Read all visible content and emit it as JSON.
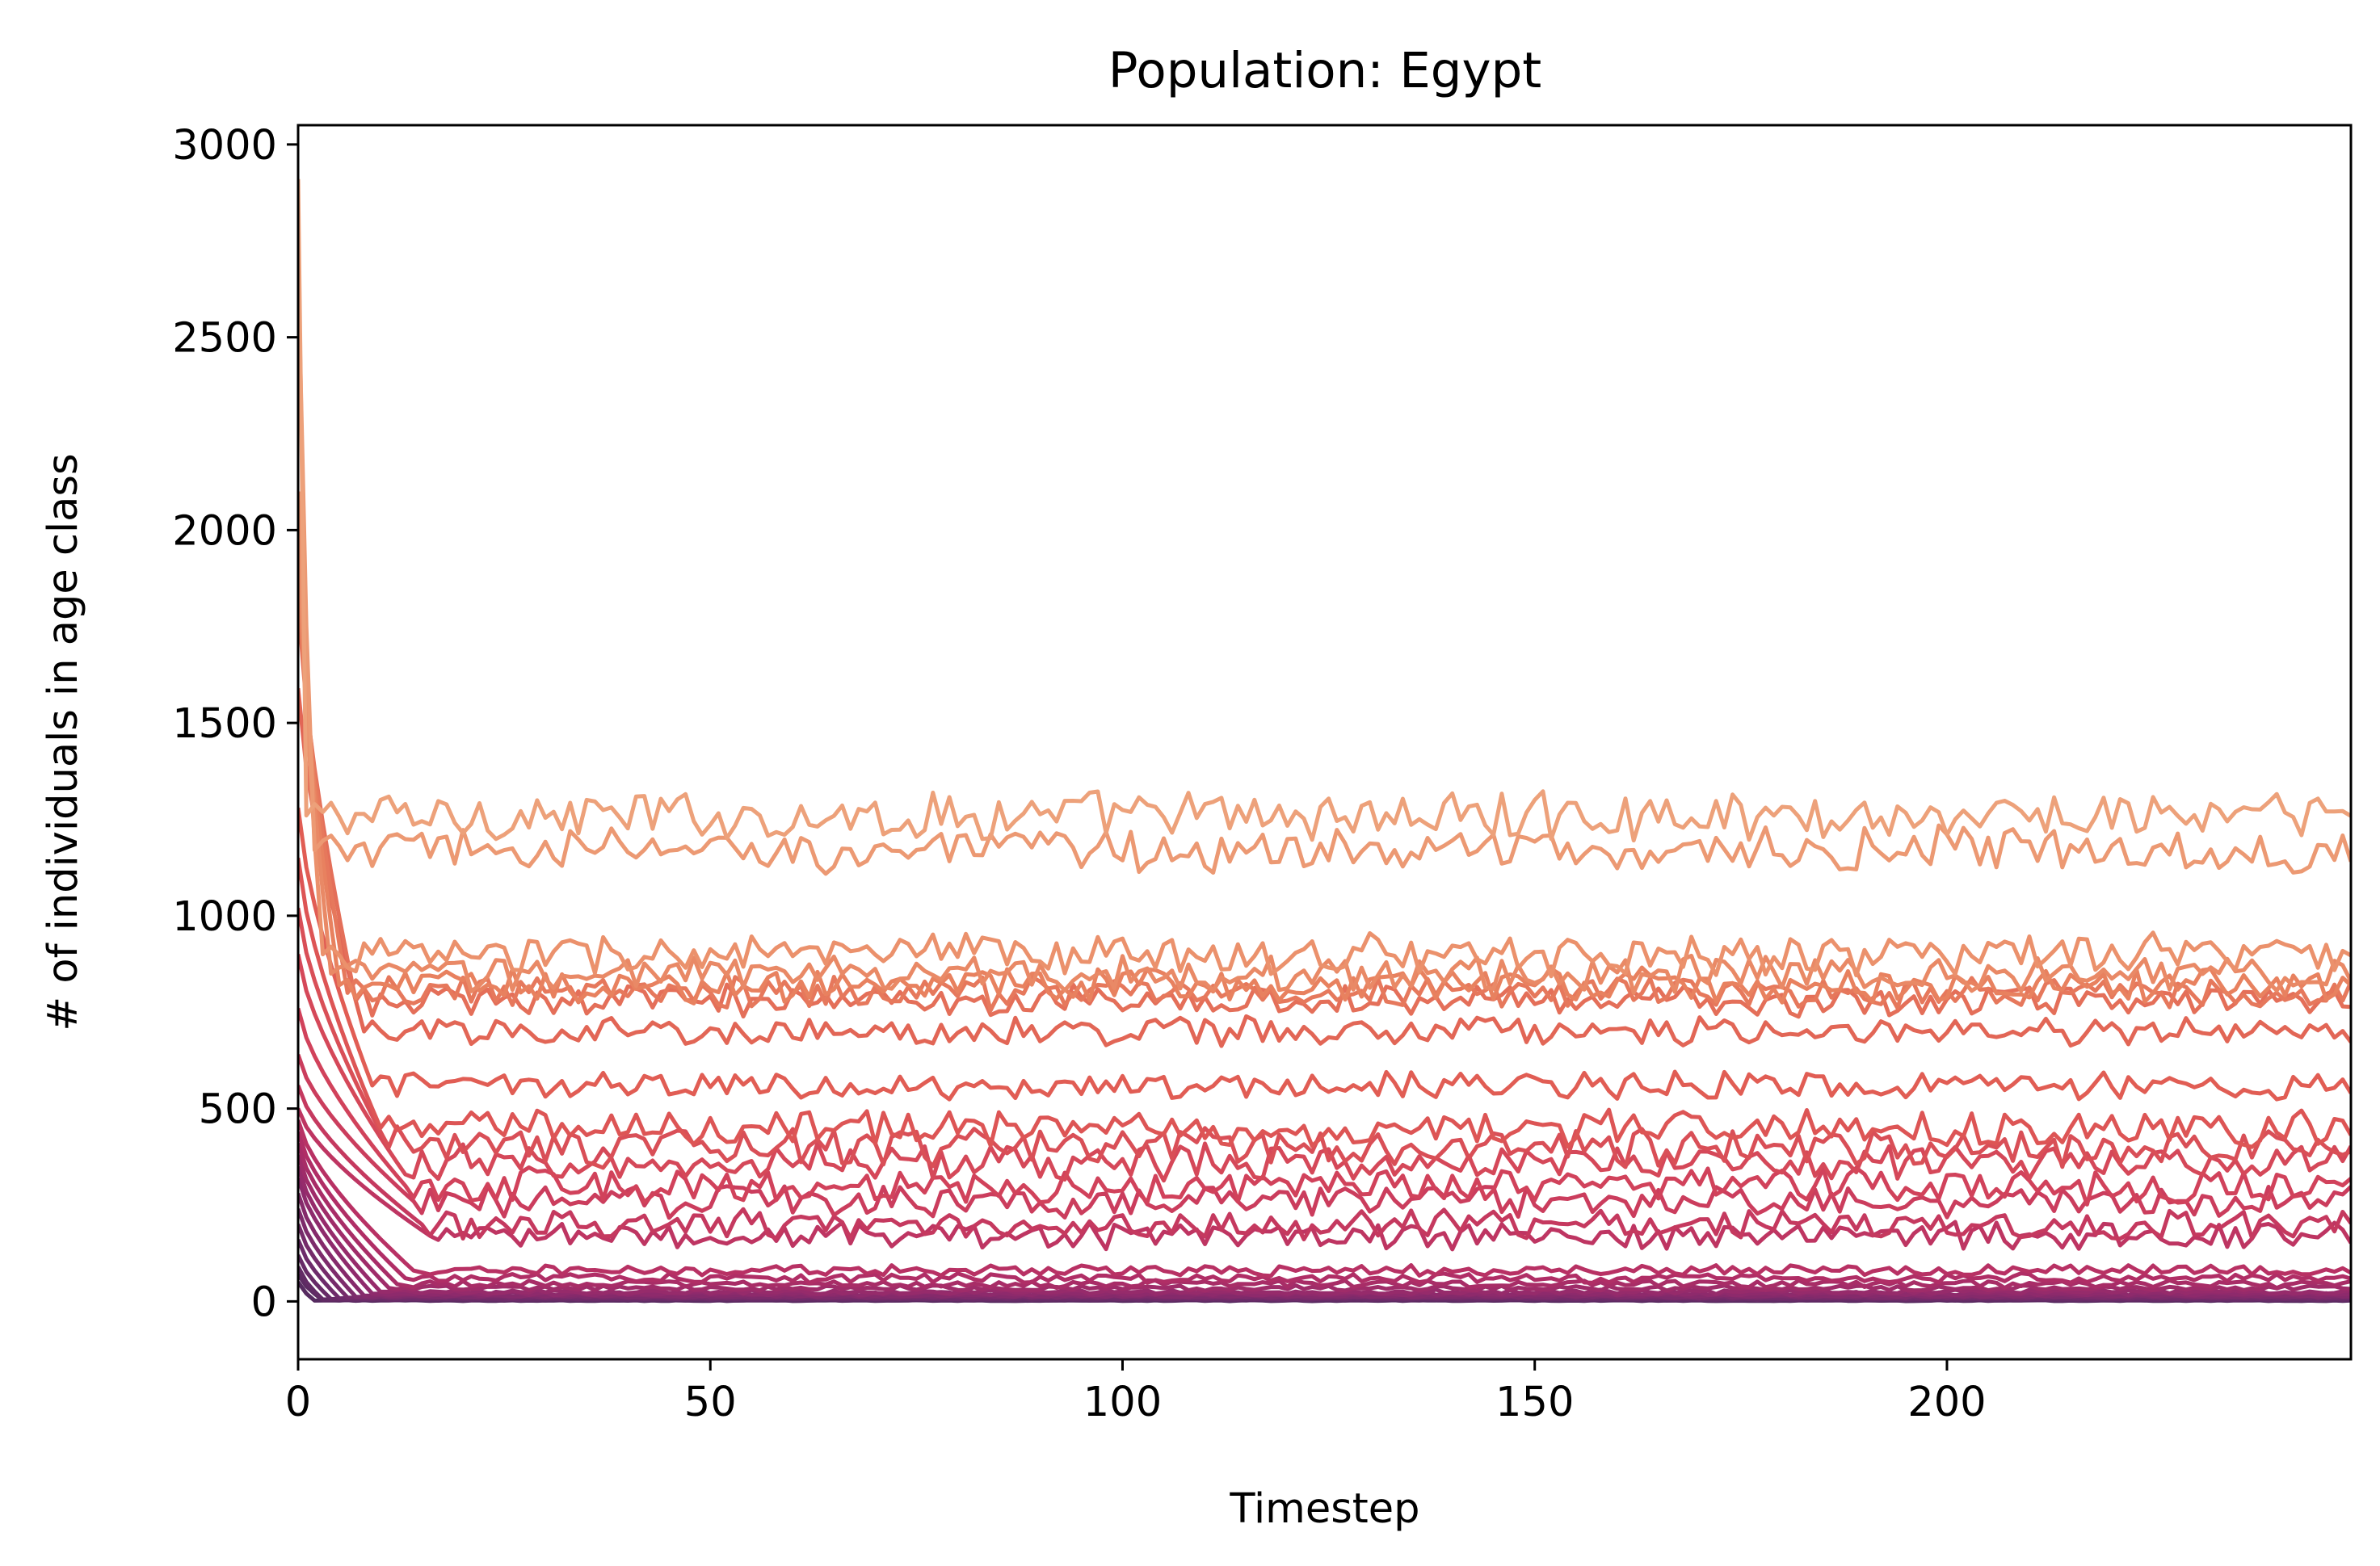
{
  "chart_data": {
    "type": "line",
    "title": "Population: Egypt",
    "xlabel": "Timestep",
    "ylabel": "# of individuals in age class",
    "xlim": [
      0,
      249
    ],
    "ylim": [
      -150,
      3050
    ],
    "x_ticks": [
      0,
      50,
      100,
      150,
      200
    ],
    "x_tick_labels": [
      "0",
      "50",
      "100",
      "150",
      "200"
    ],
    "y_ticks": [
      0,
      500,
      1000,
      1500,
      2000,
      2500,
      3000
    ],
    "y_tick_labels": [
      "0",
      "500",
      "1000",
      "1500",
      "2000",
      "2500",
      "3000"
    ],
    "grid": false,
    "legend": "none",
    "colormap": "flare",
    "color_stops": [
      "#eda17a",
      "#e8805e",
      "#e05a53",
      "#cf3f5c",
      "#b42f65",
      "#902a6c",
      "#6e2b6a",
      "#562b60"
    ],
    "series_summary": {
      "timesteps": 250,
      "series_count": 30,
      "initial_values": [
        2910,
        2680,
        2100,
        1990,
        1900,
        1860,
        1810,
        1590,
        1280,
        1150,
        1020,
        900,
        760,
        640,
        560,
        500,
        470,
        440,
        410,
        380,
        350,
        320,
        280,
        240,
        200,
        160,
        120,
        90,
        70,
        50
      ],
      "steady_state_levels": [
        1260,
        1170,
        900,
        850,
        820,
        800,
        780,
        700,
        560,
        450,
        400,
        360,
        300,
        260,
        200,
        170,
        80,
        60,
        45,
        35,
        25,
        20,
        15,
        12,
        10,
        8,
        6,
        5,
        3,
        2
      ],
      "decay_timesteps": [
        1,
        2,
        3,
        4,
        5,
        6,
        7,
        8,
        9,
        10,
        11,
        12,
        13,
        14,
        15,
        16,
        14,
        13,
        12,
        11,
        10,
        9,
        8,
        7,
        6,
        5,
        4,
        3,
        3,
        2
      ],
      "noise_amplitude": [
        55,
        50,
        45,
        40,
        38,
        36,
        35,
        32,
        30,
        40,
        42,
        40,
        38,
        36,
        32,
        30,
        12,
        10,
        8,
        6,
        5,
        4,
        3,
        3,
        2,
        2,
        2,
        1,
        1,
        1
      ]
    }
  }
}
